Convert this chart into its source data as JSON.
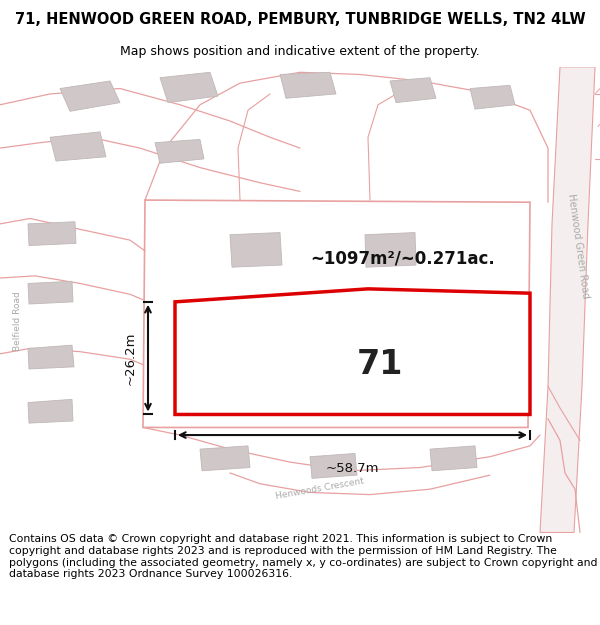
{
  "title": "71, HENWOOD GREEN ROAD, PEMBURY, TUNBRIDGE WELLS, TN2 4LW",
  "subtitle": "Map shows position and indicative extent of the property.",
  "footer": "Contains OS data © Crown copyright and database right 2021. This information is subject to Crown copyright and database rights 2023 and is reproduced with the permission of HM Land Registry. The polygons (including the associated geometry, namely x, y co-ordinates) are subject to Crown copyright and database rights 2023 Ordnance Survey 100026316.",
  "bg_color": "#ffffff",
  "map_bg": "#ffffff",
  "road_color": "#e8a0a0",
  "road_fill": "#f5eeee",
  "building_color": "#d0c8c8",
  "building_edge": "#c0b8b8",
  "highlight_color": "#dd0000",
  "dim_color": "#111111",
  "road_label_color": "#aaaaaa",
  "area_text": "~1097m²/~0.271ac.",
  "width_text": "~58.7m",
  "height_text": "~26.2m",
  "plot_number": "71",
  "title_fontsize": 10.5,
  "subtitle_fontsize": 9,
  "footer_fontsize": 7.8
}
